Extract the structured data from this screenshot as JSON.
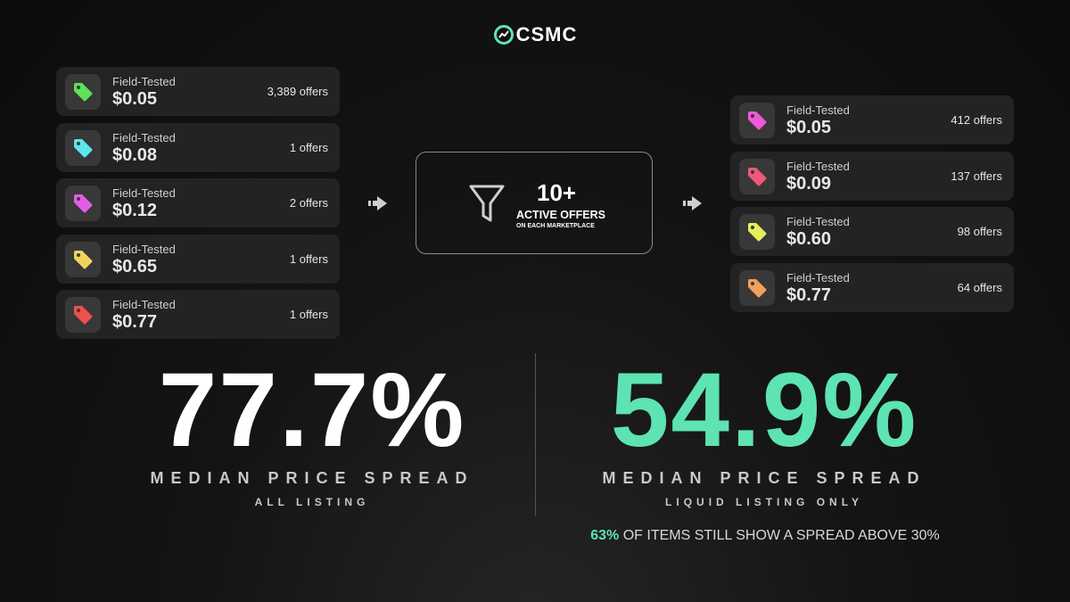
{
  "header": {
    "logo": "CSMC"
  },
  "left_listings": [
    {
      "condition": "Field-Tested",
      "price": "$0.05",
      "offers": "3,389 offers",
      "color": "#5ee05a"
    },
    {
      "condition": "Field-Tested",
      "price": "$0.08",
      "offers": "1 offers",
      "color": "#5ae8ee"
    },
    {
      "condition": "Field-Tested",
      "price": "$0.12",
      "offers": "2 offers",
      "color": "#e35ee6"
    },
    {
      "condition": "Field-Tested",
      "price": "$0.65",
      "offers": "1 offers",
      "color": "#f2d35c"
    },
    {
      "condition": "Field-Tested",
      "price": "$0.77",
      "offers": "1 offers",
      "color": "#ee5050"
    }
  ],
  "filter": {
    "count": "10+",
    "label": "ACTIVE OFFERS",
    "sublabel": "ON EACH MARKETPLACE"
  },
  "right_listings": [
    {
      "condition": "Field-Tested",
      "price": "$0.05",
      "offers": "412 offers",
      "color": "#ee5ad8"
    },
    {
      "condition": "Field-Tested",
      "price": "$0.09",
      "offers": "137 offers",
      "color": "#f0587a"
    },
    {
      "condition": "Field-Tested",
      "price": "$0.60",
      "offers": "98 offers",
      "color": "#e6ee5a"
    },
    {
      "condition": "Field-Tested",
      "price": "$0.77",
      "offers": "64 offers",
      "color": "#f2a05a"
    }
  ],
  "stats": [
    {
      "value": "77.7%",
      "label": "MEDIAN PRICE SPREAD",
      "sublabel": "ALL LISTING",
      "color": "#ffffff"
    },
    {
      "value": "54.9%",
      "label": "MEDIAN PRICE SPREAD",
      "sublabel": "LIQUID LISTING ONLY",
      "color": "#5ee3b3"
    }
  ],
  "footnote": {
    "highlight": "63%",
    "text": "OF ITEMS STILL SHOW A SPREAD ABOVE 30%"
  }
}
